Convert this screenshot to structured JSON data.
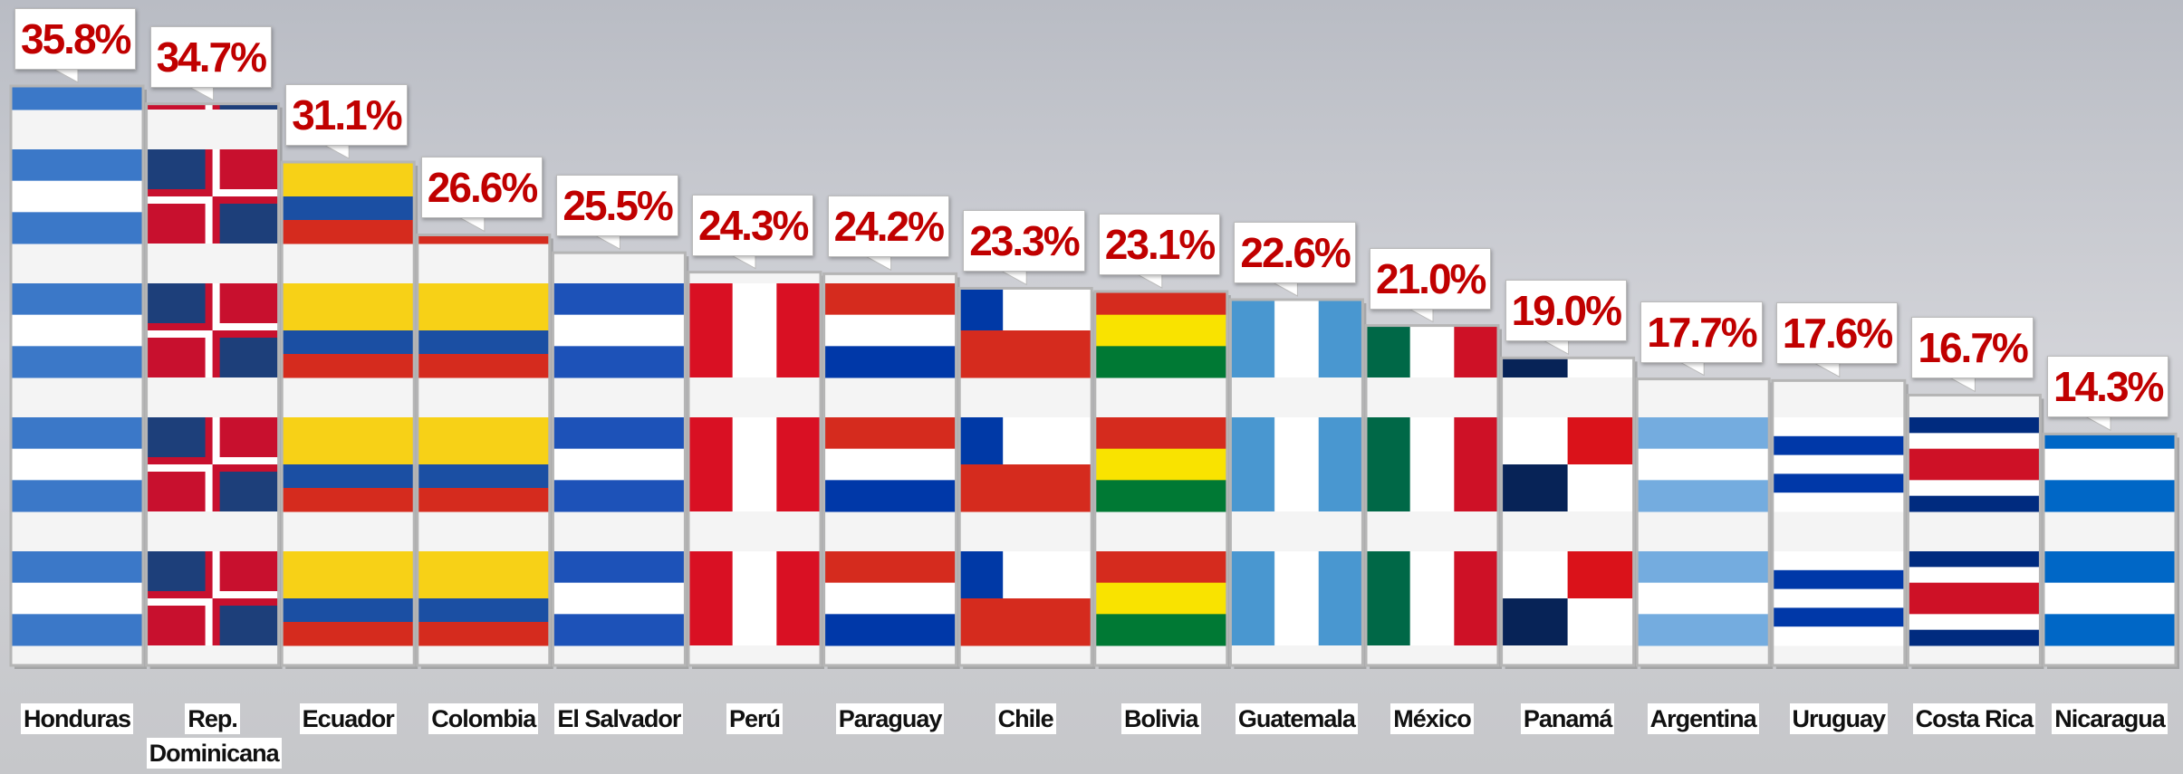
{
  "chart_data": {
    "type": "bar",
    "categories": [
      "Honduras",
      "Rep. Dominicana",
      "Ecuador",
      "Colombia",
      "El Salvador",
      "Perú",
      "Paraguay",
      "Chile",
      "Bolivia",
      "Guatemala",
      "México",
      "Panamá",
      "Argentina",
      "Uruguay",
      "Costa Rica",
      "Nicaragua"
    ],
    "values": [
      35.8,
      34.7,
      31.1,
      26.6,
      25.5,
      24.3,
      24.2,
      23.3,
      23.1,
      22.6,
      21.0,
      19.0,
      17.7,
      17.6,
      16.7,
      14.3
    ],
    "value_labels": [
      "35.8%",
      "34.7%",
      "31.1%",
      "26.6%",
      "25.5%",
      "24.3%",
      "24.2%",
      "23.3%",
      "23.1%",
      "22.6%",
      "21.0%",
      "19.0%",
      "17.7%",
      "17.6%",
      "16.7%",
      "14.3%"
    ]
  }
}
